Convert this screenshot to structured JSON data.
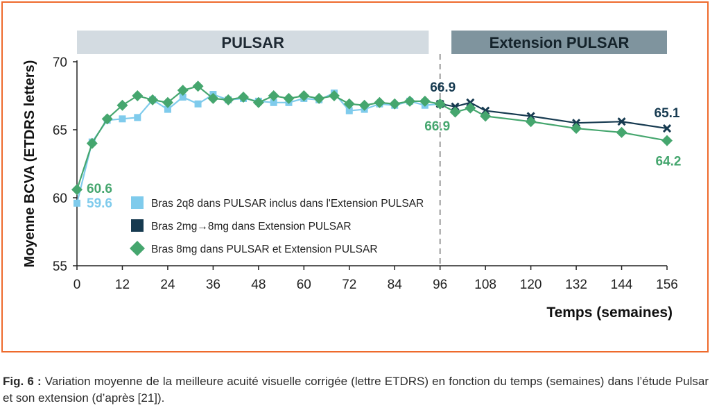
{
  "chart_data": {
    "type": "line",
    "xlabel": "Temps (semaines)",
    "ylabel": "Moyenne BCVA (ETDRS letters)",
    "xlim": [
      0,
      156
    ],
    "ylim": [
      55,
      70
    ],
    "xticks": [
      0,
      12,
      24,
      36,
      48,
      60,
      72,
      84,
      96,
      108,
      120,
      132,
      144,
      156
    ],
    "yticks": [
      55,
      60,
      65,
      70
    ],
    "grid": false,
    "legend": "inside-lower-left",
    "period_labels": [
      {
        "label": "PULSAR",
        "start": 0,
        "end": 93,
        "color": "#d3dbe1",
        "text_color": "#1f2a34"
      },
      {
        "label": "Extension PULSAR",
        "start": 99,
        "end": 156,
        "color": "#7f949e",
        "text_color": "#14232b"
      }
    ],
    "divider_x": 96,
    "series": [
      {
        "name": "Bras 2q8 dans PULSAR inclus dans l'Extension PULSAR",
        "color": "#7fcbec",
        "marker": "cross-square",
        "x": [
          0,
          4,
          8,
          12,
          16,
          20,
          24,
          28,
          32,
          36,
          40,
          44,
          48,
          52,
          56,
          60,
          64,
          68,
          72,
          76,
          80,
          84,
          88,
          92,
          96
        ],
        "values": [
          59.6,
          64.1,
          65.7,
          65.8,
          65.9,
          67.2,
          66.5,
          67.4,
          66.9,
          67.6,
          67.2,
          67.3,
          67.1,
          67.0,
          67.0,
          67.3,
          67.2,
          67.7,
          66.4,
          66.5,
          66.9,
          66.8,
          67.1,
          66.8,
          66.9
        ]
      },
      {
        "name": "Bras 2mg→8mg dans Extension PULSAR",
        "color": "#163a50",
        "marker": "cross",
        "x": [
          96,
          100,
          104,
          108,
          120,
          132,
          144,
          156
        ],
        "values": [
          66.9,
          66.7,
          67.0,
          66.4,
          66.0,
          65.5,
          65.6,
          65.1
        ]
      },
      {
        "name": "Bras 8mg dans PULSAR et Extension PULSAR",
        "color": "#45a66e",
        "marker": "diamond",
        "x": [
          0,
          4,
          8,
          12,
          16,
          20,
          24,
          28,
          32,
          36,
          40,
          44,
          48,
          52,
          56,
          60,
          64,
          68,
          72,
          76,
          80,
          84,
          88,
          92,
          96,
          100,
          104,
          108,
          120,
          132,
          144,
          156
        ],
        "values": [
          60.6,
          64.0,
          65.8,
          66.8,
          67.5,
          67.2,
          67.0,
          67.9,
          68.2,
          67.3,
          67.2,
          67.4,
          67.0,
          67.5,
          67.3,
          67.5,
          67.3,
          67.5,
          66.9,
          66.8,
          67.0,
          66.9,
          67.1,
          67.1,
          66.9,
          66.3,
          66.6,
          66.0,
          65.6,
          65.1,
          64.8,
          64.2
        ]
      }
    ],
    "data_labels": [
      {
        "text": "60.6",
        "x": 0,
        "y": 60.6,
        "series": 2
      },
      {
        "text": "59.6",
        "x": 0,
        "y": 59.6,
        "series": 0
      },
      {
        "text": "66.9",
        "x": 96,
        "y": 66.9,
        "series": 1
      },
      {
        "text": "66.9",
        "x": 96,
        "y": 66.9,
        "series": 2
      },
      {
        "text": "65.1",
        "x": 156,
        "y": 65.1,
        "series": 1
      },
      {
        "text": "64.2",
        "x": 156,
        "y": 64.2,
        "series": 2
      }
    ]
  },
  "caption": {
    "label": "Fig. 6 :",
    "text": " Variation moyenne de la meilleure acuité visuelle corrigée (lettre ETDRS) en fonction du temps (semaines) dans l’étude Pulsar et son extension (d’après [21])."
  }
}
